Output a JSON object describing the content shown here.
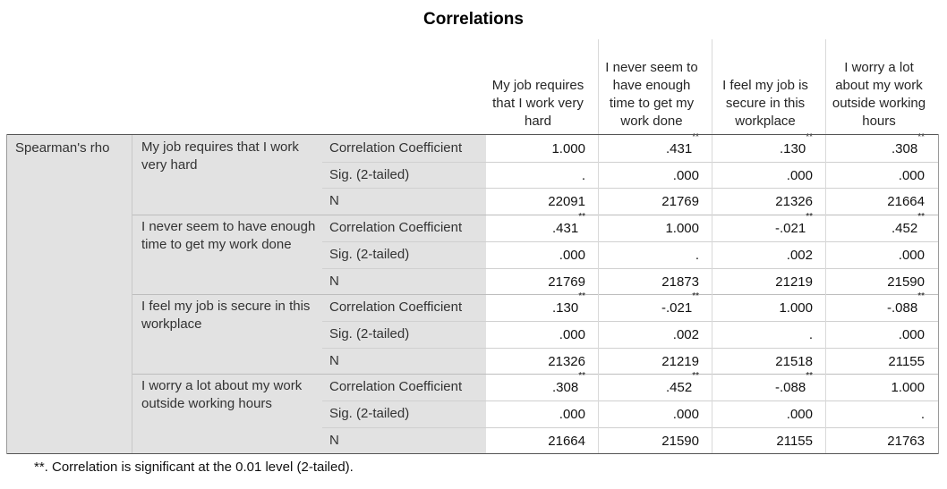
{
  "title": "Correlations",
  "columns": [
    "My job requires that I work very hard",
    "I never seem to have enough time to get my work done",
    "I feel my job is secure in this workplace",
    "I worry a lot about my work outside working hours"
  ],
  "method": "Spearman's rho",
  "row_groups": [
    {
      "label": "My job requires that I work very hard",
      "rows": [
        {
          "stat": "Correlation Coefficient",
          "values": [
            {
              "v": "1.000",
              "sig": ""
            },
            {
              "v": ".431",
              "sig": "**"
            },
            {
              "v": ".130",
              "sig": "**"
            },
            {
              "v": ".308",
              "sig": "**"
            }
          ]
        },
        {
          "stat": "Sig. (2-tailed)",
          "values": [
            {
              "v": ".",
              "sig": ""
            },
            {
              "v": ".000",
              "sig": ""
            },
            {
              "v": ".000",
              "sig": ""
            },
            {
              "v": ".000",
              "sig": ""
            }
          ]
        },
        {
          "stat": "N",
          "values": [
            {
              "v": "22091",
              "sig": ""
            },
            {
              "v": "21769",
              "sig": ""
            },
            {
              "v": "21326",
              "sig": ""
            },
            {
              "v": "21664",
              "sig": ""
            }
          ]
        }
      ]
    },
    {
      "label": "I never seem to have enough time to get my work done",
      "rows": [
        {
          "stat": "Correlation Coefficient",
          "values": [
            {
              "v": ".431",
              "sig": "**"
            },
            {
              "v": "1.000",
              "sig": ""
            },
            {
              "v": "-.021",
              "sig": "**"
            },
            {
              "v": ".452",
              "sig": "**"
            }
          ]
        },
        {
          "stat": "Sig. (2-tailed)",
          "values": [
            {
              "v": ".000",
              "sig": ""
            },
            {
              "v": ".",
              "sig": ""
            },
            {
              "v": ".002",
              "sig": ""
            },
            {
              "v": ".000",
              "sig": ""
            }
          ]
        },
        {
          "stat": "N",
          "values": [
            {
              "v": "21769",
              "sig": ""
            },
            {
              "v": "21873",
              "sig": ""
            },
            {
              "v": "21219",
              "sig": ""
            },
            {
              "v": "21590",
              "sig": ""
            }
          ]
        }
      ]
    },
    {
      "label": "I feel my job is secure in this workplace",
      "rows": [
        {
          "stat": "Correlation Coefficient",
          "values": [
            {
              "v": ".130",
              "sig": "**"
            },
            {
              "v": "-.021",
              "sig": "**"
            },
            {
              "v": "1.000",
              "sig": ""
            },
            {
              "v": "-.088",
              "sig": "**"
            }
          ]
        },
        {
          "stat": "Sig. (2-tailed)",
          "values": [
            {
              "v": ".000",
              "sig": ""
            },
            {
              "v": ".002",
              "sig": ""
            },
            {
              "v": ".",
              "sig": ""
            },
            {
              "v": ".000",
              "sig": ""
            }
          ]
        },
        {
          "stat": "N",
          "values": [
            {
              "v": "21326",
              "sig": ""
            },
            {
              "v": "21219",
              "sig": ""
            },
            {
              "v": "21518",
              "sig": ""
            },
            {
              "v": "21155",
              "sig": ""
            }
          ]
        }
      ]
    },
    {
      "label": "I worry a lot about my work outside working hours",
      "rows": [
        {
          "stat": "Correlation Coefficient",
          "values": [
            {
              "v": ".308",
              "sig": "**"
            },
            {
              "v": ".452",
              "sig": "**"
            },
            {
              "v": "-.088",
              "sig": "**"
            },
            {
              "v": "1.000",
              "sig": ""
            }
          ]
        },
        {
          "stat": "Sig. (2-tailed)",
          "values": [
            {
              "v": ".000",
              "sig": ""
            },
            {
              "v": ".000",
              "sig": ""
            },
            {
              "v": ".000",
              "sig": ""
            },
            {
              "v": ".",
              "sig": ""
            }
          ]
        },
        {
          "stat": "N",
          "values": [
            {
              "v": "21664",
              "sig": ""
            },
            {
              "v": "21590",
              "sig": ""
            },
            {
              "v": "21155",
              "sig": ""
            },
            {
              "v": "21763",
              "sig": ""
            }
          ]
        }
      ]
    }
  ],
  "footnote": "**. Correlation is significant at the 0.01 level (2-tailed).",
  "colors": {
    "label_bg": "#e2e2e2",
    "grid": "#d9d9d9"
  }
}
